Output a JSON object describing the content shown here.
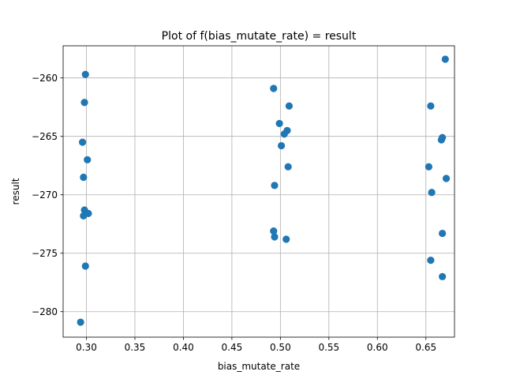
{
  "chart_data": {
    "type": "scatter",
    "title": "Plot of f(bias_mutate_rate) = result",
    "xlabel": "bias_mutate_rate",
    "ylabel": "result",
    "xlim": [
      0.276,
      0.6795
    ],
    "ylim": [
      -282.18,
      -257.25
    ],
    "xticks": [
      0.3,
      0.35,
      0.4,
      0.45,
      0.5,
      0.55,
      0.6,
      0.65
    ],
    "xtick_labels": [
      "0.30",
      "0.35",
      "0.40",
      "0.45",
      "0.50",
      "0.55",
      "0.60",
      "0.65"
    ],
    "yticks": [
      -260,
      -265,
      -270,
      -275,
      -280
    ],
    "ytick_labels": [
      "−260",
      "−265",
      "−270",
      "−275",
      "−280"
    ],
    "grid": true,
    "marker_color": "#1f77b4",
    "points": [
      {
        "x": 0.299,
        "y": -259.7
      },
      {
        "x": 0.298,
        "y": -262.1
      },
      {
        "x": 0.296,
        "y": -265.5
      },
      {
        "x": 0.301,
        "y": -267.0
      },
      {
        "x": 0.297,
        "y": -268.5
      },
      {
        "x": 0.298,
        "y": -271.3
      },
      {
        "x": 0.297,
        "y": -271.8
      },
      {
        "x": 0.302,
        "y": -271.6
      },
      {
        "x": 0.299,
        "y": -276.1
      },
      {
        "x": 0.294,
        "y": -280.9
      },
      {
        "x": 0.493,
        "y": -260.9
      },
      {
        "x": 0.509,
        "y": -262.4
      },
      {
        "x": 0.499,
        "y": -263.9
      },
      {
        "x": 0.504,
        "y": -264.8
      },
      {
        "x": 0.507,
        "y": -264.5
      },
      {
        "x": 0.501,
        "y": -265.8
      },
      {
        "x": 0.508,
        "y": -267.6
      },
      {
        "x": 0.494,
        "y": -269.2
      },
      {
        "x": 0.493,
        "y": -273.1
      },
      {
        "x": 0.494,
        "y": -273.6
      },
      {
        "x": 0.506,
        "y": -273.8
      },
      {
        "x": 0.67,
        "y": -258.4
      },
      {
        "x": 0.655,
        "y": -262.4
      },
      {
        "x": 0.667,
        "y": -265.1
      },
      {
        "x": 0.666,
        "y": -265.3
      },
      {
        "x": 0.653,
        "y": -267.6
      },
      {
        "x": 0.671,
        "y": -268.6
      },
      {
        "x": 0.656,
        "y": -269.8
      },
      {
        "x": 0.667,
        "y": -273.3
      },
      {
        "x": 0.655,
        "y": -275.6
      },
      {
        "x": 0.667,
        "y": -277.0
      }
    ]
  }
}
